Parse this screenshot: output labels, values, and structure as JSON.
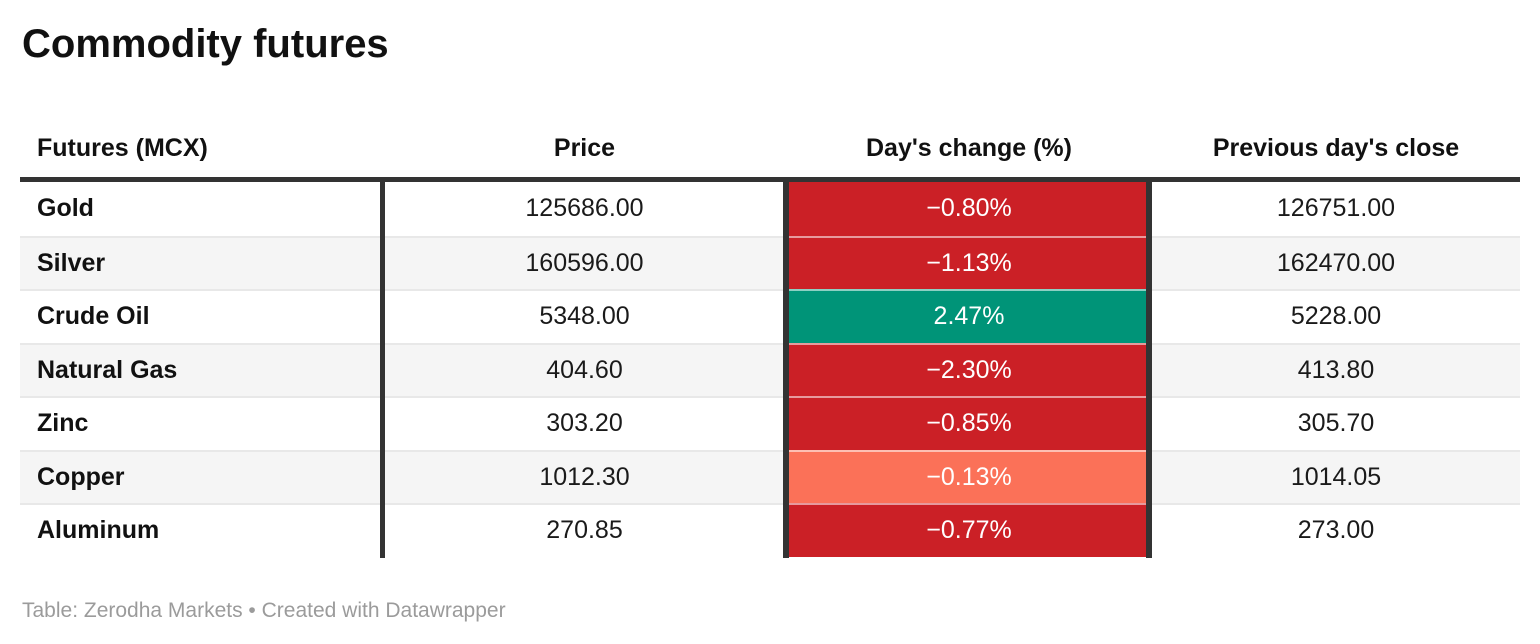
{
  "title": "Commodity futures",
  "table": {
    "columns": [
      "Futures (MCX)",
      "Price",
      "Day's change (%)",
      "Previous day's close"
    ],
    "rows": [
      {
        "name": "Gold",
        "price": "125686.00",
        "change": "−0.80%",
        "prev_close": "126751.00",
        "change_color": "#cb2026"
      },
      {
        "name": "Silver",
        "price": "160596.00",
        "change": "−1.13%",
        "prev_close": "162470.00",
        "change_color": "#cb2026"
      },
      {
        "name": "Crude Oil",
        "price": "5348.00",
        "change": "2.47%",
        "prev_close": "5228.00",
        "change_color": "#009478"
      },
      {
        "name": "Natural Gas",
        "price": "404.60",
        "change": "−2.30%",
        "prev_close": "413.80",
        "change_color": "#cb2026"
      },
      {
        "name": "Zinc",
        "price": "303.20",
        "change": "−0.85%",
        "prev_close": "305.70",
        "change_color": "#cb2026"
      },
      {
        "name": "Copper",
        "price": "1012.30",
        "change": "−0.13%",
        "prev_close": "1014.05",
        "change_color": "#fb7158"
      },
      {
        "name": "Aluminum",
        "price": "270.85",
        "change": "−0.77%",
        "prev_close": "273.00",
        "change_color": "#cb2026"
      }
    ]
  },
  "footer": "Table: Zerodha Markets • Created with Datawrapper",
  "colors": {
    "negative": "#cb2026",
    "negative_light": "#fb7158",
    "positive": "#009478",
    "rule_dark": "#333333",
    "row_stripe": "#f5f5f5",
    "row_separator": "#e8e8e8",
    "text": "#1a1a1a",
    "footer_text": "#9b9b9b"
  },
  "chart_data": {
    "type": "table",
    "title": "Commodity futures",
    "columns": [
      "Futures (MCX)",
      "Price",
      "Day's change (%)",
      "Previous day's close"
    ],
    "rows": [
      [
        "Gold",
        125686.0,
        -0.8,
        126751.0
      ],
      [
        "Silver",
        160596.0,
        -1.13,
        162470.0
      ],
      [
        "Crude Oil",
        5348.0,
        2.47,
        5228.0
      ],
      [
        "Natural Gas",
        404.6,
        -2.3,
        413.8
      ],
      [
        "Zinc",
        303.2,
        -0.85,
        305.7
      ],
      [
        "Copper",
        1012.3,
        -0.13,
        1014.05
      ],
      [
        "Aluminum",
        270.85,
        -0.77,
        273.0
      ]
    ],
    "notes": "Day's change cell background encodes sign/magnitude: strong red = negative, light red = small negative, green = positive",
    "source": "Table: Zerodha Markets"
  }
}
